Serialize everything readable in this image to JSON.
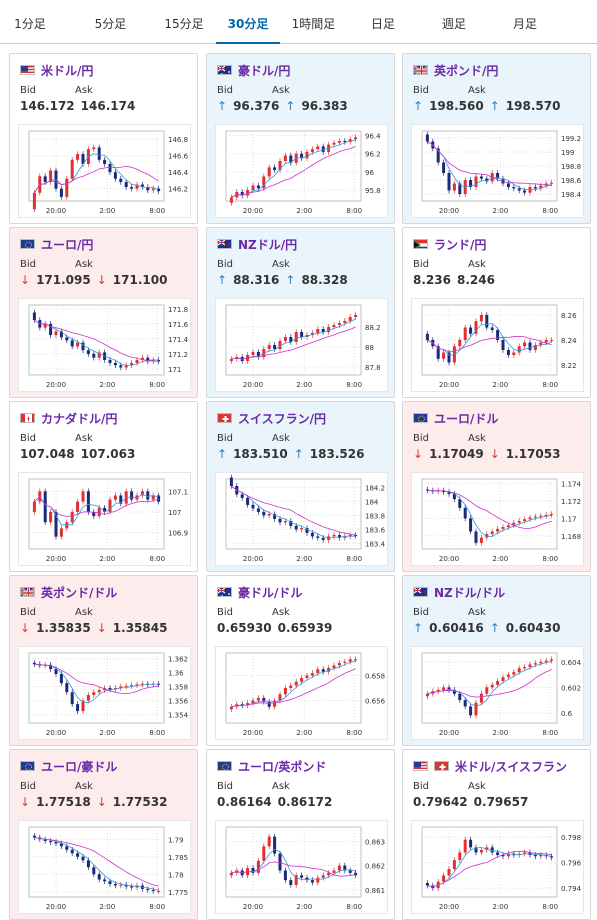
{
  "tabs": [
    {
      "label": "1分足",
      "active": false
    },
    {
      "label": "5分足",
      "active": false
    },
    {
      "label": "15分足",
      "active": false
    },
    {
      "label": "30分足",
      "active": true
    },
    {
      "label": "1時間足",
      "active": false
    },
    {
      "label": "日足",
      "active": false
    },
    {
      "label": "週足",
      "active": false
    },
    {
      "label": "月足",
      "active": false
    }
  ],
  "labels": {
    "bid": "Bid",
    "ask": "Ask"
  },
  "x_ticks": [
    "20:00",
    "2:00",
    "8:00"
  ],
  "colors": {
    "up_bg": "#eaf4fb",
    "down_bg": "#fdecec",
    "arrow_up": "#2a7fc4",
    "arrow_down": "#d93a3a",
    "candle_up": "#e03030",
    "candle_down": "#1a2a7a",
    "ma_short": "#3399dd",
    "ma_long": "#cc33cc"
  },
  "pairs": [
    {
      "name": "米ドル/円",
      "flag": "us",
      "dir": "flat",
      "bid": "146.172",
      "ask": "146.174",
      "y_ticks": [
        "146.8",
        "146.6",
        "146.4",
        "146.2"
      ],
      "ylim": [
        146.05,
        146.9
      ],
      "closes": [
        146.15,
        146.35,
        146.28,
        146.42,
        146.2,
        146.1,
        146.32,
        146.55,
        146.62,
        146.5,
        146.68,
        146.7,
        146.55,
        146.5,
        146.4,
        146.32,
        146.28,
        146.22,
        146.2,
        146.25,
        146.22,
        146.18,
        146.2,
        146.17
      ]
    },
    {
      "name": "豪ドル/円",
      "flag": "au",
      "dir": "up",
      "bid": "96.376",
      "ask": "96.383",
      "y_ticks": [
        "96.4",
        "96.2",
        "96",
        "95.8"
      ],
      "ylim": [
        95.68,
        96.45
      ],
      "closes": [
        95.72,
        95.78,
        95.74,
        95.8,
        95.85,
        95.82,
        95.95,
        96.05,
        96.02,
        96.12,
        96.18,
        96.1,
        96.2,
        96.15,
        96.22,
        96.25,
        96.28,
        96.22,
        96.3,
        96.32,
        96.34,
        96.33,
        96.36,
        96.38
      ]
    },
    {
      "name": "英ポンド/円",
      "flag": "gb",
      "dir": "up",
      "bid": "198.560",
      "ask": "198.570",
      "y_ticks": [
        "199.2",
        "199",
        "198.8",
        "198.6",
        "198.4"
      ],
      "ylim": [
        198.3,
        199.3
      ],
      "closes": [
        199.15,
        199.05,
        198.85,
        198.7,
        198.45,
        198.55,
        198.4,
        198.6,
        198.5,
        198.65,
        198.62,
        198.58,
        198.7,
        198.62,
        198.55,
        198.5,
        198.48,
        198.45,
        198.42,
        198.5,
        198.48,
        198.52,
        198.55,
        198.56
      ]
    },
    {
      "name": "ユーロ/円",
      "flag": "eu",
      "dir": "down",
      "bid": "171.095",
      "ask": "171.100",
      "y_ticks": [
        "171.8",
        "171.6",
        "171.4",
        "171.2",
        "171"
      ],
      "ylim": [
        170.92,
        171.85
      ],
      "closes": [
        171.65,
        171.55,
        171.6,
        171.45,
        171.5,
        171.42,
        171.38,
        171.3,
        171.35,
        171.25,
        171.2,
        171.15,
        171.22,
        171.12,
        171.08,
        171.05,
        171.02,
        171.05,
        171.08,
        171.12,
        171.15,
        171.1,
        171.12,
        171.1
      ]
    },
    {
      "name": "NZドル/円",
      "flag": "nz",
      "dir": "up",
      "bid": "88.316",
      "ask": "88.328",
      "y_ticks": [
        "88.2",
        "88",
        "87.8"
      ],
      "ylim": [
        87.72,
        88.42
      ],
      "closes": [
        87.88,
        87.9,
        87.86,
        87.92,
        87.95,
        87.9,
        87.98,
        88.02,
        87.98,
        88.06,
        88.1,
        88.05,
        88.15,
        88.1,
        88.12,
        88.14,
        88.18,
        88.15,
        88.2,
        88.22,
        88.24,
        88.26,
        88.3,
        88.32
      ]
    },
    {
      "name": "ランド/円",
      "flag": "za",
      "dir": "flat",
      "bid": "8.236",
      "ask": "8.246",
      "y_ticks": [
        "8.26",
        "8.24",
        "8.22"
      ],
      "ylim": [
        8.212,
        8.268
      ],
      "closes": [
        8.24,
        8.235,
        8.225,
        8.23,
        8.222,
        8.235,
        8.24,
        8.25,
        8.245,
        8.255,
        8.26,
        8.25,
        8.248,
        8.24,
        8.232,
        8.228,
        8.23,
        8.235,
        8.238,
        8.232,
        8.236,
        8.238,
        8.24,
        8.24
      ]
    },
    {
      "name": "カナダドル/円",
      "flag": "ca",
      "dir": "flat",
      "bid": "107.048",
      "ask": "107.063",
      "y_ticks": [
        "107.1",
        "107",
        "106.9"
      ],
      "ylim": [
        106.82,
        107.16
      ],
      "closes": [
        107.05,
        107.1,
        106.95,
        107.0,
        106.88,
        106.92,
        106.95,
        107.0,
        107.05,
        107.1,
        107.0,
        106.98,
        107.02,
        107.0,
        107.06,
        107.08,
        107.04,
        107.1,
        107.06,
        107.08,
        107.1,
        107.06,
        107.08,
        107.05
      ]
    },
    {
      "name": "スイスフラン/円",
      "flag": "ch",
      "dir": "up",
      "bid": "183.510",
      "ask": "183.526",
      "y_ticks": [
        "184.2",
        "184",
        "183.8",
        "183.6",
        "183.4"
      ],
      "ylim": [
        183.32,
        184.32
      ],
      "closes": [
        184.22,
        184.1,
        184.05,
        183.95,
        183.9,
        183.85,
        183.8,
        183.82,
        183.75,
        183.7,
        183.72,
        183.65,
        183.6,
        183.62,
        183.55,
        183.5,
        183.48,
        183.45,
        183.5,
        183.52,
        183.48,
        183.5,
        183.52,
        183.51
      ]
    },
    {
      "name": "ユーロ/ドル",
      "flag": "eu",
      "dir": "down",
      "bid": "1.17049",
      "ask": "1.17053",
      "y_ticks": [
        "1.174",
        "1.172",
        "1.17",
        "1.168"
      ],
      "ylim": [
        1.1665,
        1.1745
      ],
      "closes": [
        1.1732,
        1.1731,
        1.1732,
        1.173,
        1.1728,
        1.1722,
        1.1712,
        1.17,
        1.1685,
        1.1672,
        1.1678,
        1.1682,
        1.1685,
        1.1688,
        1.169,
        1.1692,
        1.1695,
        1.1697,
        1.1699,
        1.1701,
        1.1702,
        1.1703,
        1.1704,
        1.1705
      ]
    },
    {
      "name": "英ポンド/ドル",
      "flag": "gb",
      "dir": "down",
      "bid": "1.35835",
      "ask": "1.35845",
      "y_ticks": [
        "1.362",
        "1.36",
        "1.358",
        "1.356",
        "1.354"
      ],
      "ylim": [
        1.3528,
        1.3628
      ],
      "closes": [
        1.3612,
        1.361,
        1.3611,
        1.3605,
        1.3598,
        1.3585,
        1.3572,
        1.3555,
        1.3545,
        1.356,
        1.3568,
        1.3572,
        1.3575,
        1.3578,
        1.3576,
        1.3578,
        1.358,
        1.3581,
        1.3582,
        1.3583,
        1.3584,
        1.3583,
        1.3584,
        1.3583
      ]
    },
    {
      "name": "豪ドル/ドル",
      "flag": "au",
      "dir": "flat",
      "bid": "0.65930",
      "ask": "0.65939",
      "y_ticks": [
        "0.658",
        "0.656"
      ],
      "ylim": [
        0.6542,
        0.6598
      ],
      "closes": [
        0.6555,
        0.6557,
        0.6556,
        0.6558,
        0.656,
        0.6562,
        0.6559,
        0.6555,
        0.656,
        0.6565,
        0.657,
        0.6572,
        0.6575,
        0.6578,
        0.658,
        0.6582,
        0.6585,
        0.6583,
        0.6586,
        0.6588,
        0.659,
        0.6591,
        0.6593,
        0.6593
      ]
    },
    {
      "name": "NZドル/ドル",
      "flag": "nz",
      "dir": "up",
      "bid": "0.60416",
      "ask": "0.60430",
      "y_ticks": [
        "0.604",
        "0.602",
        "0.6"
      ],
      "ylim": [
        0.5992,
        0.6047
      ],
      "closes": [
        0.6015,
        0.6017,
        0.6018,
        0.602,
        0.6018,
        0.6015,
        0.601,
        0.6005,
        0.5998,
        0.6008,
        0.6015,
        0.602,
        0.6022,
        0.6025,
        0.6028,
        0.603,
        0.6032,
        0.6035,
        0.6036,
        0.6038,
        0.6039,
        0.604,
        0.6041,
        0.6042
      ]
    },
    {
      "name": "ユーロ/豪ドル",
      "flag": "eu",
      "dir": "down",
      "bid": "1.77518",
      "ask": "1.77532",
      "y_ticks": [
        "1.79",
        "1.785",
        "1.78",
        "1.775"
      ],
      "ylim": [
        1.7735,
        1.7935
      ],
      "closes": [
        1.7905,
        1.79,
        1.7895,
        1.7892,
        1.7888,
        1.788,
        1.787,
        1.786,
        1.785,
        1.784,
        1.782,
        1.78,
        1.7785,
        1.778,
        1.7772,
        1.7768,
        1.777,
        1.7765,
        1.7762,
        1.7768,
        1.7758,
        1.7755,
        1.7752,
        1.7752
      ]
    },
    {
      "name": "ユーロ/英ポンド",
      "flag": "eu",
      "dir": "flat",
      "bid": "0.86164",
      "ask": "0.86172",
      "y_ticks": [
        "0.863",
        "0.862",
        "0.861"
      ],
      "ylim": [
        0.8607,
        0.8636
      ],
      "closes": [
        0.8617,
        0.8618,
        0.8616,
        0.8619,
        0.8617,
        0.8622,
        0.8628,
        0.8632,
        0.8625,
        0.8618,
        0.8614,
        0.8612,
        0.8616,
        0.8615,
        0.8614,
        0.8613,
        0.8615,
        0.8616,
        0.8617,
        0.8618,
        0.862,
        0.8618,
        0.8617,
        0.8616
      ]
    },
    {
      "name": "米ドル/スイスフラン",
      "flag": "usch",
      "dir": "flat",
      "bid": "0.79642",
      "ask": "0.79657",
      "y_ticks": [
        "0.798",
        "0.796",
        "0.794"
      ],
      "ylim": [
        0.7933,
        0.7988
      ],
      "closes": [
        0.7942,
        0.794,
        0.7945,
        0.795,
        0.7955,
        0.7962,
        0.7968,
        0.7978,
        0.7972,
        0.7968,
        0.797,
        0.7972,
        0.7968,
        0.7966,
        0.7965,
        0.7967,
        0.7966,
        0.7967,
        0.7968,
        0.7966,
        0.7965,
        0.7966,
        0.7965,
        0.7964
      ]
    }
  ]
}
